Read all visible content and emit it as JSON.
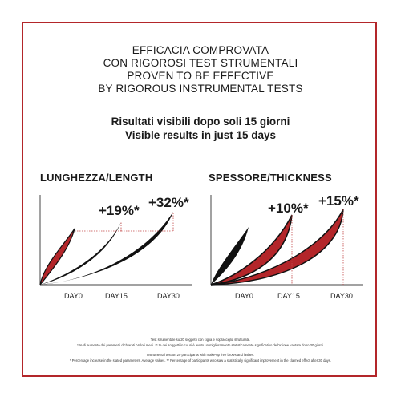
{
  "colors": {
    "frame": "#b3262a",
    "red": "#b3262a",
    "black": "#111111",
    "guide": "#c44a4a"
  },
  "title_lines": [
    "EFFICACIA COMPROVATA",
    "CON RIGOROSI TEST STRUMENTALI",
    "PROVEN TO BE EFFECTIVE",
    "BY RIGOROUS INSTRUMENTAL TESTS"
  ],
  "subtitle_lines": [
    "Risultati visibili dopo soli 15 giorni",
    "Visible results in just 15 days"
  ],
  "chart_data": [
    {
      "type": "line",
      "title": "LUNGHEZZA/LENGTH",
      "x": [
        "DAY0",
        "DAY15",
        "DAY30"
      ],
      "series": [
        {
          "values": [
            0,
            19,
            32
          ],
          "color": "#b3262a"
        }
      ],
      "annotations": [
        "+19%*",
        "+32%*"
      ]
    },
    {
      "type": "line",
      "title": "SPESSORE/THICKNESS",
      "x": [
        "DAY0",
        "DAY15",
        "DAY30"
      ],
      "series": [
        {
          "values": [
            0,
            10,
            15
          ],
          "color": "#b3262a"
        }
      ],
      "annotations": [
        "+10%*",
        "+15%*"
      ]
    }
  ],
  "footnotes": {
    "it_1": "Test strumentale su 20 soggetti con ciglia e sopracciglia strutturate.",
    "it_2": "* % di aumento dei parametri dichiarati. Valori medi. ** % dei soggetti in cui si è avuto un miglioramento statisticamente significativo dell'azione vantata dopo 30 giorni.",
    "en_1": "Instrumental test on 20 participants with make-up free brows and lashes.",
    "en_2": "* Percentage increase in the stated parameters. Average values. ** Percentage of participants who saw a statistically significant improvement in the claimed effect after 30 days."
  }
}
